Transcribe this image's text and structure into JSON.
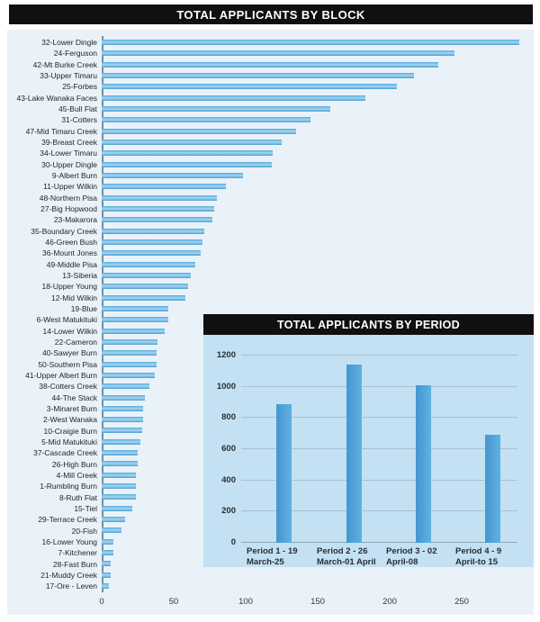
{
  "block_chart": {
    "title": "TOTAL APPLICANTS BY BLOCK"
  },
  "period_chart": {
    "title": "TOTAL APPLICANTS BY PERIOD"
  },
  "colors": {
    "header_background": "#101010",
    "header_text": "#ffffff",
    "panel_background": "#e9f2f9",
    "inset_background": "#c3e1f3",
    "bar_blue": "#58abdf",
    "axis_gray": "#7e8c96"
  },
  "chart_data": [
    {
      "type": "bar",
      "orientation": "horizontal",
      "title": "TOTAL APPLICANTS BY BLOCK",
      "xlabel": "",
      "ylabel": "",
      "xticks": [
        0,
        50,
        100,
        150,
        200,
        250
      ],
      "xlim": [
        0,
        300
      ],
      "grid": false,
      "legend": false,
      "categories": [
        "32-Lower Dingle",
        "24-Ferguson",
        "42-Mt Burke Creek",
        "33-Upper Timaru",
        "25-Forbes",
        "43-Lake Wanaka Faces",
        "45-Bull Flat",
        "31-Cotters",
        "47-Mid Timaru Creek",
        "39-Breast Creek",
        "34-Lower Timaru",
        "30-Upper Dingle",
        "9-Albert Burn",
        "11-Upper Wilkin",
        "48-Northern Pisa",
        "27-Big Hopwood",
        "23-Makarora",
        "35-Boundary Creek",
        "46-Green Bush",
        "36-Mount Jones",
        "49-Middle Pisa",
        "13-Siberia",
        "18-Upper Young",
        "12-Mid Wilkin",
        "19-Blue",
        "6-West Matukituki",
        "14-Lower Wilkin",
        "22-Cameron",
        "40-Sawyer Burn",
        "50-Southern Pisa",
        "41-Upper Albert Burn",
        "38-Cotters Creek",
        "44-The Stack",
        "3-Minaret Burn",
        "2-West Wanaka",
        "10-Craigie Burn",
        "5-Mid Matukituki",
        "37-Cascade Creek",
        "26-High Burn",
        "4-Mill Creek",
        "1-Rumbling Burn",
        "8-Ruth Flat",
        "15-Tiel",
        "29-Terrace Creek",
        "20-Fish",
        "16-Lower Young",
        "7-Kitchener",
        "28-Fast Burn",
        "21-Muddy Creek",
        "17-Ore - Leven"
      ],
      "values": [
        290,
        245,
        234,
        217,
        205,
        183,
        159,
        145,
        135,
        125,
        119,
        118,
        98,
        86,
        80,
        78,
        77,
        71,
        70,
        69,
        65,
        62,
        60,
        58,
        46,
        46,
        44,
        39,
        38,
        38,
        37,
        33,
        30,
        29,
        29,
        28,
        27,
        25,
        25,
        24,
        24,
        24,
        21,
        16,
        14,
        8,
        8,
        6,
        6,
        5
      ]
    },
    {
      "type": "bar",
      "orientation": "vertical",
      "title": "TOTAL APPLICANTS BY PERIOD",
      "xlabel": "",
      "ylabel": "",
      "yticks": [
        0,
        200,
        400,
        600,
        800,
        1000,
        1200
      ],
      "ylim": [
        0,
        1330
      ],
      "grid": true,
      "legend": false,
      "categories": [
        {
          "line1": "Period 1 - 19",
          "line2": "March-25"
        },
        {
          "line1": "Period 2 - 26",
          "line2": "March-01 April"
        },
        {
          "line1": "Period 3 - 02",
          "line2": "April-08"
        },
        {
          "line1": "Period 4 - 9",
          "line2": "April-to 15"
        }
      ],
      "values": [
        890,
        1140,
        1010,
        690
      ]
    }
  ]
}
